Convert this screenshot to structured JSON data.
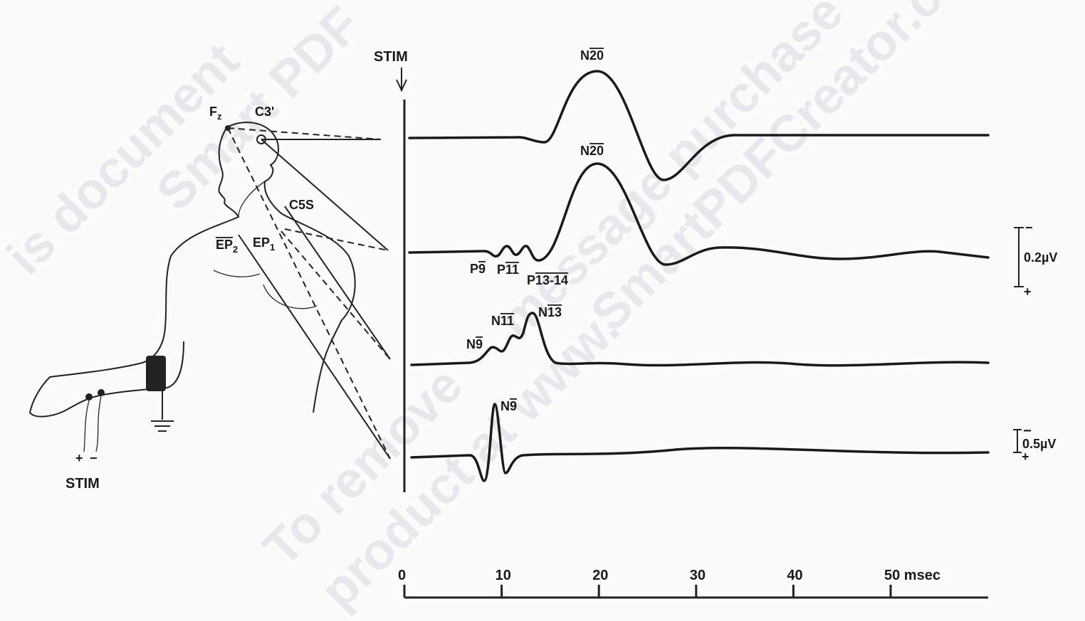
{
  "stim_marker": "STIM",
  "electrodes": {
    "fz": {
      "base": "F",
      "sub": "z"
    },
    "c3": "C3'",
    "c5s": "C5S",
    "ep1": {
      "base": "EP",
      "sub": "1"
    },
    "ep2": {
      "base": "EP",
      "sub": "2"
    }
  },
  "stim_label": "STIM",
  "stim_polarity": [
    "+",
    "−"
  ],
  "peaks": [
    {
      "prefix": "N",
      "latency": "20"
    },
    {
      "prefix": "N",
      "latency": "20"
    },
    {
      "prefix": "P",
      "latency": "9"
    },
    {
      "prefix": "P",
      "latency": "11"
    },
    {
      "prefix": "P",
      "latency": "13-14"
    },
    {
      "prefix": "N",
      "latency": "9"
    },
    {
      "prefix": "N",
      "latency": "11"
    },
    {
      "prefix": "N",
      "latency": "13"
    },
    {
      "prefix": "N",
      "latency": "9"
    }
  ],
  "scale_bars": [
    {
      "minus": "−",
      "plus": "+",
      "label": "0.2µV"
    },
    {
      "minus": "−",
      "plus": "+",
      "label": "0.5µV"
    }
  ],
  "time_axis": {
    "ticks": [
      "0",
      "10",
      "20",
      "30",
      "40",
      "50 msec"
    ]
  },
  "watermark": [
    "is document",
    "Smart PDF",
    "message purchase",
    "SmartPDFCreator.c",
    "To remove",
    "product at www."
  ]
}
